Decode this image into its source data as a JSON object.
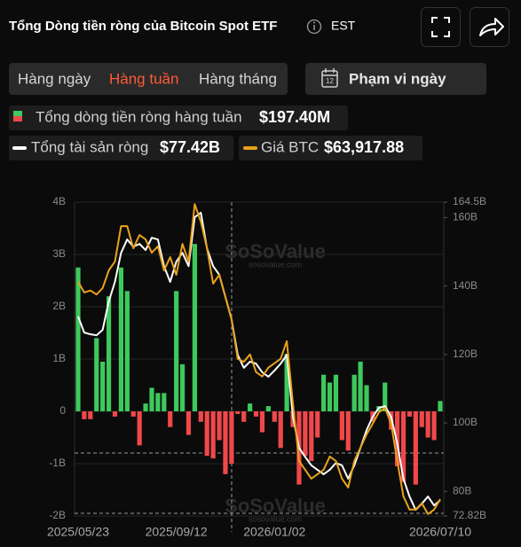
{
  "header": {
    "title": "Tổng Dòng tiền ròng của Bitcoin Spot ETF",
    "timezone": "EST"
  },
  "controls": {
    "tabs": [
      "Hàng ngày",
      "Hàng tuần",
      "Hàng tháng"
    ],
    "active_tab": 1,
    "date_range": "Phạm vi ngày",
    "calendar_day": "12"
  },
  "watermark": [
    "SoSoValue",
    "sosovalue.com"
  ],
  "chart_data": {
    "type": "bar",
    "categories": [
      "2025/05/23",
      null,
      null,
      null,
      null,
      null,
      null,
      null,
      null,
      null,
      null,
      null,
      null,
      null,
      null,
      null,
      "2025/09/12",
      null,
      null,
      null,
      null,
      null,
      null,
      null,
      null,
      null,
      null,
      null,
      null,
      null,
      null,
      null,
      "2026/01/02",
      null,
      null,
      null,
      null,
      null,
      null,
      null,
      null,
      null,
      null,
      null,
      null,
      null,
      null,
      null,
      null,
      null,
      null,
      null,
      null,
      null,
      null,
      null,
      null,
      null,
      null,
      "2026/07/10"
    ],
    "ylim": [
      -2,
      4
    ],
    "yticks": [
      {
        "value": 4,
        "label": "4B"
      },
      {
        "value": 3,
        "label": "3B"
      },
      {
        "value": 2,
        "label": "2B"
      },
      {
        "value": 1,
        "label": "1B"
      },
      0,
      {
        "value": -1,
        "label": "-1B"
      },
      {
        "value": -2,
        "label": "-2B"
      }
    ],
    "y2lim": [
      72.82,
      164.5
    ],
    "y2ticks": [
      {
        "value": 164.5,
        "label": "164.5B"
      },
      {
        "value": 160,
        "label": "160B"
      },
      {
        "value": 140,
        "label": "140B"
      },
      {
        "value": 120,
        "label": "120B"
      },
      {
        "value": 100,
        "label": "100B"
      },
      {
        "value": 80,
        "label": "80B"
      },
      {
        "value": 72.82,
        "label": "72.82B"
      }
    ],
    "y3lim": [
      60500,
      124400
    ],
    "grid": true,
    "series": [
      {
        "name": "Tổng dòng tiền ròng hàng tuần",
        "type": "bar",
        "color": "#3ec95c",
        "negative_color": "#f0484a",
        "latest_label": "$197.40M",
        "values": [
          2.75,
          -0.15,
          -0.15,
          1.4,
          0.95,
          2.2,
          -0.1,
          2.75,
          2.3,
          -0.1,
          -0.65,
          0.15,
          0.45,
          0.35,
          0.35,
          -0.3,
          2.3,
          0.9,
          -0.45,
          3.2,
          -0.2,
          -0.85,
          -0.9,
          -0.55,
          -1.2,
          -1.0,
          -0.05,
          -0.2,
          0.15,
          -0.1,
          -0.4,
          0.1,
          -0.2,
          -0.7,
          1.1,
          -0.3,
          -1.4,
          -0.85,
          -0.95,
          -0.5,
          0.7,
          0.55,
          0.7,
          -0.55,
          -0.75,
          0.7,
          0.95,
          0.5,
          -0.2,
          0.1,
          0.55,
          -0.35,
          -1.05,
          -1.35,
          -0.1,
          -1.4,
          -0.3,
          -0.5,
          -0.55,
          0.1974
        ]
      },
      {
        "name": "Tổng tài sản ròng",
        "type": "line",
        "axis": "y2",
        "color": "#ffffff",
        "latest_label": "$77.42B",
        "values": [
          131.1,
          126.4,
          125.9,
          125.6,
          127.2,
          135.5,
          141.2,
          149.7,
          153.6,
          151.5,
          152.3,
          150.5,
          154.1,
          153.6,
          145.8,
          141.2,
          147.1,
          149.7,
          145.8,
          160.1,
          161.4,
          151.0,
          145.8,
          143.3,
          136.8,
          130.3,
          119.9,
          116.1,
          117.9,
          117.3,
          114.8,
          113.5,
          115.3,
          117.3,
          119.9,
          101.8,
          92.7,
          90.1,
          87.6,
          86.3,
          85.0,
          86.3,
          88.3,
          87.6,
          83.7,
          87.6,
          92.7,
          97.9,
          101.8,
          104.4,
          104.9,
          101.8,
          94.0,
          83.7,
          78.5,
          74.6,
          76.4,
          78.5,
          75.9,
          77.42
        ]
      },
      {
        "name": "Giá BTC",
        "type": "line",
        "axis": "y3",
        "color": "#e9a21c",
        "latest_label": "$63,917.88",
        "values": [
          108200,
          106000,
          106400,
          105600,
          106900,
          110500,
          112300,
          119500,
          119500,
          115000,
          117700,
          116800,
          114100,
          115400,
          110500,
          113200,
          109600,
          115900,
          112300,
          124000,
          120400,
          115000,
          107800,
          109600,
          105100,
          100600,
          92500,
          91900,
          93400,
          89800,
          88900,
          90700,
          91600,
          92500,
          96100,
          83400,
          71700,
          69900,
          68100,
          69000,
          69900,
          72600,
          71700,
          68100,
          66300,
          71700,
          74400,
          77100,
          79300,
          81600,
          82500,
          79300,
          71700,
          64500,
          61800,
          61800,
          63100,
          60900,
          61800,
          63917.88
        ]
      }
    ]
  }
}
